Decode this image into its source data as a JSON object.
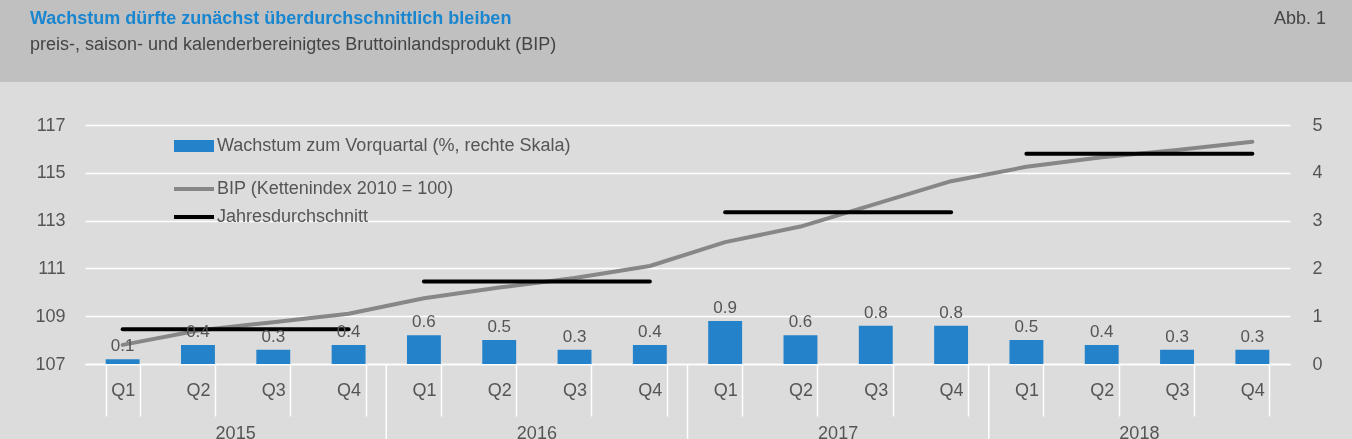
{
  "chart_data": {
    "type": "bar",
    "title": "Wachstum dürfte zunächst überdurchschnittlich bleiben",
    "subtitle": "preis-, saison- und kalenderbereinigtes Bruttoinlandsprodukt (BIP)",
    "annotations": [
      "Abb. 1",
      "2015",
      "2016",
      "2017",
      "2018"
    ],
    "categories": [
      "Q1",
      "Q2",
      "Q3",
      "Q4",
      "Q1",
      "Q2",
      "Q3",
      "Q4",
      "Q1",
      "Q2",
      "Q3",
      "Q4",
      "Q1",
      "Q2",
      "Q3",
      "Q4"
    ],
    "series": [
      {
        "name": "Wachstum zum Vorquartal (%, rechte Skala)",
        "axis": "y2",
        "color": "#2382c9",
        "values": [
          0.1,
          0.4,
          0.3,
          0.4,
          0.6,
          0.5,
          0.3,
          0.4,
          0.9,
          0.6,
          0.8,
          0.8,
          0.5,
          0.4,
          0.3,
          0.3
        ],
        "value_labels": [
          "0.1",
          "0.4",
          "0.3",
          "0.4",
          "0.6",
          "0.5",
          "0.3",
          "0.4",
          "0.9",
          "0.6",
          "0.8",
          "0.8",
          "0.5",
          "0.4",
          "0.3",
          "0.3"
        ]
      },
      {
        "name": "BIP (Kettenindex 2010 = 100)",
        "type": "line",
        "color": "#878787",
        "values": [
          107.8,
          108.4,
          108.75,
          109.1,
          109.75,
          110.2,
          110.6,
          111.1,
          112.1,
          112.75,
          113.7,
          114.65,
          115.25,
          115.65,
          115.95,
          116.3
        ]
      },
      {
        "name": "Jahresdurchschnitt",
        "type": "line",
        "color": "#000000",
        "values": [
          108.45,
          108.45,
          108.45,
          108.45,
          null,
          null,
          null,
          null,
          null,
          null,
          null,
          null,
          null,
          null,
          null,
          null
        ]
      },
      {
        "type": "line",
        "color": "#000000",
        "values": [
          null,
          null,
          null,
          null,
          110.45,
          110.45,
          110.45,
          110.45,
          null,
          null,
          null,
          null,
          null,
          null,
          null,
          null
        ]
      },
      {
        "type": "line",
        "color": "#000000",
        "values": [
          null,
          null,
          null,
          null,
          null,
          null,
          null,
          null,
          113.35,
          113.35,
          113.35,
          113.35,
          null,
          null,
          null,
          null
        ]
      },
      {
        "type": "line",
        "color": "#000000",
        "values": [
          null,
          null,
          null,
          null,
          null,
          null,
          null,
          null,
          null,
          null,
          null,
          null,
          115.8,
          115.8,
          115.8,
          115.8
        ]
      }
    ],
    "ylim": [
      107,
      117
    ],
    "yticks": [
      107,
      109,
      111,
      113,
      115,
      117
    ],
    "y2lim": [
      0,
      5
    ],
    "y2ticks": [
      0,
      1,
      2,
      3,
      4,
      5
    ],
    "grid": "y",
    "legend": "top left",
    "marker": "none"
  }
}
